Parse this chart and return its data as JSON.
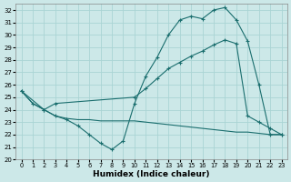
{
  "bg_color": "#cce8e8",
  "grid_color": "#aad4d4",
  "line_color": "#1a6e6e",
  "xlabel": "Humidex (Indice chaleur)",
  "ylim": [
    20,
    32.5
  ],
  "xlim": [
    -0.5,
    23.5
  ],
  "yticks": [
    20,
    21,
    22,
    23,
    24,
    25,
    26,
    27,
    28,
    29,
    30,
    31,
    32
  ],
  "xticks": [
    0,
    1,
    2,
    3,
    4,
    5,
    6,
    7,
    8,
    9,
    10,
    11,
    12,
    13,
    14,
    15,
    16,
    17,
    18,
    19,
    20,
    21,
    22,
    23
  ],
  "line1_x": [
    0,
    1,
    2,
    3,
    4,
    5,
    6,
    7,
    8,
    9,
    10,
    11,
    12,
    13,
    14,
    15,
    16,
    17,
    18,
    19,
    20,
    21,
    22,
    23
  ],
  "line1_y": [
    25.5,
    24.5,
    24.0,
    23.5,
    23.2,
    22.7,
    22.0,
    21.3,
    20.8,
    21.5,
    24.5,
    26.7,
    28.2,
    30.0,
    31.2,
    31.5,
    31.3,
    32.0,
    32.2,
    31.2,
    29.5,
    26.0,
    22.0,
    22.0
  ],
  "line2_x": [
    0,
    2,
    3,
    10,
    11,
    12,
    13,
    14,
    15,
    16,
    17,
    18,
    19,
    20,
    21,
    22,
    23
  ],
  "line2_y": [
    25.5,
    24.0,
    24.5,
    25.0,
    25.7,
    26.5,
    27.3,
    27.8,
    28.3,
    28.7,
    29.2,
    29.6,
    29.3,
    23.5,
    23.0,
    22.5,
    22.0
  ],
  "line3_x": [
    0,
    1,
    2,
    3,
    4,
    5,
    6,
    7,
    8,
    9,
    10,
    11,
    12,
    13,
    14,
    15,
    16,
    17,
    18,
    19,
    20,
    21,
    22,
    23
  ],
  "line3_y": [
    25.5,
    24.5,
    24.0,
    23.5,
    23.3,
    23.2,
    23.2,
    23.1,
    23.1,
    23.1,
    23.1,
    23.0,
    22.9,
    22.8,
    22.7,
    22.6,
    22.5,
    22.4,
    22.3,
    22.2,
    22.2,
    22.1,
    22.0,
    22.0
  ]
}
